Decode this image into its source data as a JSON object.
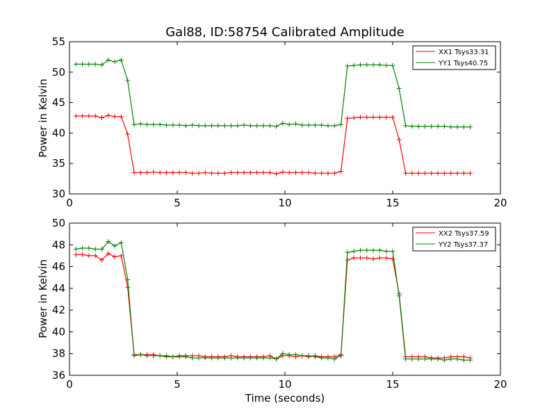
{
  "chart_data": [
    {
      "type": "line",
      "title": "Gal88, ID:58754 Calibrated Amplitude",
      "xlabel": "",
      "ylabel": "Power in Kelvin",
      "xlim": [
        0,
        20
      ],
      "ylim": [
        30,
        55
      ],
      "xticks": [
        "0",
        "5",
        "10",
        "15",
        "20"
      ],
      "yticks": [
        "30",
        "35",
        "40",
        "45",
        "50",
        "55"
      ],
      "grid": false,
      "legend_position": "top-right",
      "x": [
        0.3,
        0.6,
        0.9,
        1.2,
        1.5,
        1.8,
        2.1,
        2.4,
        2.7,
        3.0,
        3.3,
        3.6,
        3.9,
        4.2,
        4.5,
        4.8,
        5.1,
        5.4,
        5.7,
        6.0,
        6.3,
        6.6,
        6.9,
        7.2,
        7.5,
        7.8,
        8.1,
        8.4,
        8.7,
        9.0,
        9.3,
        9.6,
        9.9,
        10.2,
        10.5,
        10.8,
        11.1,
        11.4,
        11.7,
        12.0,
        12.3,
        12.6,
        12.9,
        13.2,
        13.5,
        13.8,
        14.1,
        14.4,
        14.7,
        15.0,
        15.3,
        15.6,
        15.9,
        16.2,
        16.5,
        16.8,
        17.1,
        17.4,
        17.7,
        18.0,
        18.3,
        18.6
      ],
      "series": [
        {
          "name": "XX1 Tsys33.31",
          "color": "#ff0000",
          "values": [
            42.8,
            42.8,
            42.8,
            42.8,
            42.5,
            42.9,
            42.7,
            42.7,
            39.8,
            33.5,
            33.5,
            33.5,
            33.6,
            33.5,
            33.5,
            33.5,
            33.5,
            33.5,
            33.4,
            33.4,
            33.5,
            33.4,
            33.4,
            33.4,
            33.5,
            33.5,
            33.5,
            33.5,
            33.5,
            33.5,
            33.5,
            33.3,
            33.6,
            33.5,
            33.5,
            33.5,
            33.5,
            33.4,
            33.4,
            33.4,
            33.4,
            33.7,
            42.4,
            42.5,
            42.6,
            42.6,
            42.6,
            42.6,
            42.6,
            42.6,
            38.9,
            33.4,
            33.4,
            33.4,
            33.4,
            33.4,
            33.4,
            33.4,
            33.4,
            33.4,
            33.4,
            33.4
          ]
        },
        {
          "name": "YY1 Tsys40.75",
          "color": "#008000",
          "values": [
            51.3,
            51.3,
            51.3,
            51.3,
            51.2,
            52.0,
            51.7,
            52.0,
            48.6,
            41.4,
            41.5,
            41.4,
            41.4,
            41.4,
            41.3,
            41.3,
            41.3,
            41.2,
            41.3,
            41.2,
            41.2,
            41.2,
            41.2,
            41.2,
            41.2,
            41.2,
            41.3,
            41.2,
            41.2,
            41.2,
            41.2,
            41.1,
            41.6,
            41.4,
            41.5,
            41.3,
            41.3,
            41.3,
            41.3,
            41.2,
            41.2,
            41.4,
            51.0,
            51.1,
            51.2,
            51.2,
            51.2,
            51.2,
            51.1,
            51.1,
            47.3,
            41.2,
            41.1,
            41.1,
            41.1,
            41.1,
            41.1,
            41.1,
            41.0,
            41.0,
            41.0,
            41.0
          ]
        }
      ]
    },
    {
      "type": "line",
      "title": "",
      "xlabel": "Time (seconds)",
      "ylabel": "Power in Kelvin",
      "xlim": [
        0,
        20
      ],
      "ylim": [
        36,
        50
      ],
      "xticks": [
        "0",
        "5",
        "10",
        "15",
        "20"
      ],
      "yticks": [
        "36",
        "38",
        "40",
        "42",
        "44",
        "46",
        "48",
        "50"
      ],
      "grid": false,
      "legend_position": "top-right",
      "x": [
        0.3,
        0.6,
        0.9,
        1.2,
        1.5,
        1.8,
        2.1,
        2.4,
        2.7,
        3.0,
        3.3,
        3.6,
        3.9,
        4.2,
        4.5,
        4.8,
        5.1,
        5.4,
        5.7,
        6.0,
        6.3,
        6.6,
        6.9,
        7.2,
        7.5,
        7.8,
        8.1,
        8.4,
        8.7,
        9.0,
        9.3,
        9.6,
        9.9,
        10.2,
        10.5,
        10.8,
        11.1,
        11.4,
        11.7,
        12.0,
        12.3,
        12.6,
        12.9,
        13.2,
        13.5,
        13.8,
        14.1,
        14.4,
        14.7,
        15.0,
        15.3,
        15.6,
        15.9,
        16.2,
        16.5,
        16.8,
        17.1,
        17.4,
        17.7,
        18.0,
        18.3,
        18.6
      ],
      "series": [
        {
          "name": "XX2 Tsys37.59",
          "color": "#ff0000",
          "values": [
            47.1,
            47.1,
            47.0,
            47.0,
            46.6,
            47.2,
            46.9,
            47.0,
            44.1,
            37.9,
            37.9,
            37.9,
            37.9,
            37.8,
            37.8,
            37.7,
            37.8,
            37.8,
            37.8,
            37.8,
            37.7,
            37.7,
            37.7,
            37.7,
            37.8,
            37.7,
            37.7,
            37.7,
            37.7,
            37.7,
            37.8,
            37.5,
            37.8,
            37.8,
            37.7,
            37.8,
            37.7,
            37.8,
            37.7,
            37.7,
            37.7,
            37.9,
            46.6,
            46.8,
            46.8,
            46.8,
            46.7,
            46.8,
            46.8,
            46.7,
            43.5,
            37.7,
            37.7,
            37.7,
            37.7,
            37.6,
            37.6,
            37.6,
            37.7,
            37.7,
            37.7,
            37.6
          ]
        },
        {
          "name": "YY2 Tsys37.37",
          "color": "#008000",
          "values": [
            47.6,
            47.7,
            47.7,
            47.6,
            47.6,
            48.3,
            47.9,
            48.2,
            44.8,
            37.8,
            37.9,
            37.8,
            37.8,
            37.8,
            37.7,
            37.7,
            37.7,
            37.7,
            37.6,
            37.6,
            37.6,
            37.6,
            37.6,
            37.6,
            37.6,
            37.6,
            37.6,
            37.6,
            37.6,
            37.6,
            37.6,
            37.5,
            38.0,
            37.9,
            37.9,
            37.8,
            37.8,
            37.7,
            37.6,
            37.6,
            37.5,
            37.8,
            47.3,
            47.4,
            47.5,
            47.5,
            47.5,
            47.5,
            47.4,
            47.4,
            43.3,
            37.5,
            37.5,
            37.5,
            37.5,
            37.5,
            37.5,
            37.4,
            37.5,
            37.5,
            37.4,
            37.4
          ]
        }
      ]
    }
  ]
}
